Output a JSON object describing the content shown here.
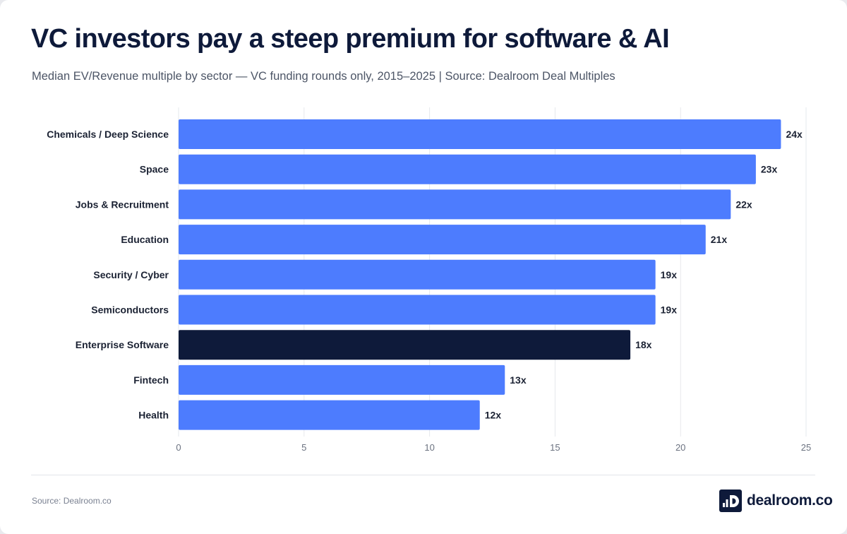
{
  "chart_data": {
    "type": "bar",
    "orientation": "horizontal",
    "title": "VC investors pay a steep premium for software & AI",
    "subtitle": "Median EV/Revenue multiple by sector — VC funding rounds only, 2015–2025 | Source: Dealroom Deal Multiples",
    "categories": [
      "Chemicals / Deep Science",
      "Space",
      "Jobs & Recruitment",
      "Education",
      "Security / Cyber",
      "Semiconductors",
      "Enterprise Software",
      "Fintech",
      "Health"
    ],
    "values": [
      24,
      23,
      22,
      21,
      19,
      19,
      18,
      13,
      12
    ],
    "value_labels": [
      "24x",
      "23x",
      "22x",
      "21x",
      "19x",
      "19x",
      "18x",
      "13x",
      "12x"
    ],
    "highlight": "Enterprise Software",
    "xlim": [
      0,
      25
    ],
    "xticks": [
      0,
      5,
      10,
      15,
      20,
      25
    ],
    "xlabel": "",
    "ylabel": "",
    "grid": "vertical",
    "colors": {
      "bar": "#4d7cfe",
      "highlight": "#0e1a3a",
      "grid": "#e6e8ec",
      "label": "#1b2233",
      "tick": "#6b7280"
    }
  },
  "footer": {
    "source": "Source: Dealroom.co",
    "brand": "dealroom.co",
    "logo_icon": "dealroom-logo-icon"
  }
}
